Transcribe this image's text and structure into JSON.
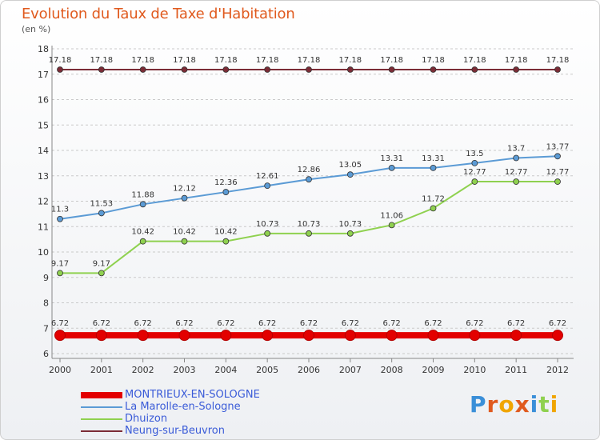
{
  "title": "Evolution du Taux de Taxe d'Habitation",
  "subtitle": "(en %)",
  "logo_text": "Proxiti",
  "colors": {
    "title": "#e05a1e",
    "legend_text": "#3a5bd8"
  },
  "chart_data": {
    "type": "line",
    "title": "Evolution du Taux de Taxe d'Habitation",
    "ylabel": "(en %)",
    "xlabel": "",
    "ylim": [
      6,
      18
    ],
    "yticks": [
      6,
      7,
      8,
      9,
      10,
      11,
      12,
      13,
      14,
      15,
      16,
      17,
      18
    ],
    "grid": true,
    "legend_position": "bottom-left",
    "categories": [
      "2000",
      "2001",
      "2002",
      "2003",
      "2004",
      "2005",
      "2006",
      "2007",
      "2008",
      "2009",
      "2010",
      "2011",
      "2012"
    ],
    "series": [
      {
        "name": "MONTRIEUX-EN-SOLOGNE",
        "color": "#e30000",
        "values": [
          6.72,
          6.72,
          6.72,
          6.72,
          6.72,
          6.72,
          6.72,
          6.72,
          6.72,
          6.72,
          6.72,
          6.72,
          6.72
        ]
      },
      {
        "name": "La Marolle-en-Sologne",
        "color": "#5b9bd5",
        "values": [
          11.3,
          11.53,
          11.88,
          12.12,
          12.36,
          12.61,
          12.86,
          13.05,
          13.31,
          13.31,
          13.5,
          13.7,
          13.77
        ]
      },
      {
        "name": "Dhuizon",
        "color": "#8fd14f",
        "values": [
          9.17,
          9.17,
          10.42,
          10.42,
          10.42,
          10.73,
          10.73,
          10.73,
          11.06,
          11.72,
          12.77,
          12.77,
          12.77
        ]
      },
      {
        "name": "Neung-sur-Beuvron",
        "color": "#7b2c36",
        "values": [
          17.18,
          17.18,
          17.18,
          17.18,
          17.18,
          17.18,
          17.18,
          17.18,
          17.18,
          17.18,
          17.18,
          17.18,
          17.18
        ]
      }
    ]
  }
}
